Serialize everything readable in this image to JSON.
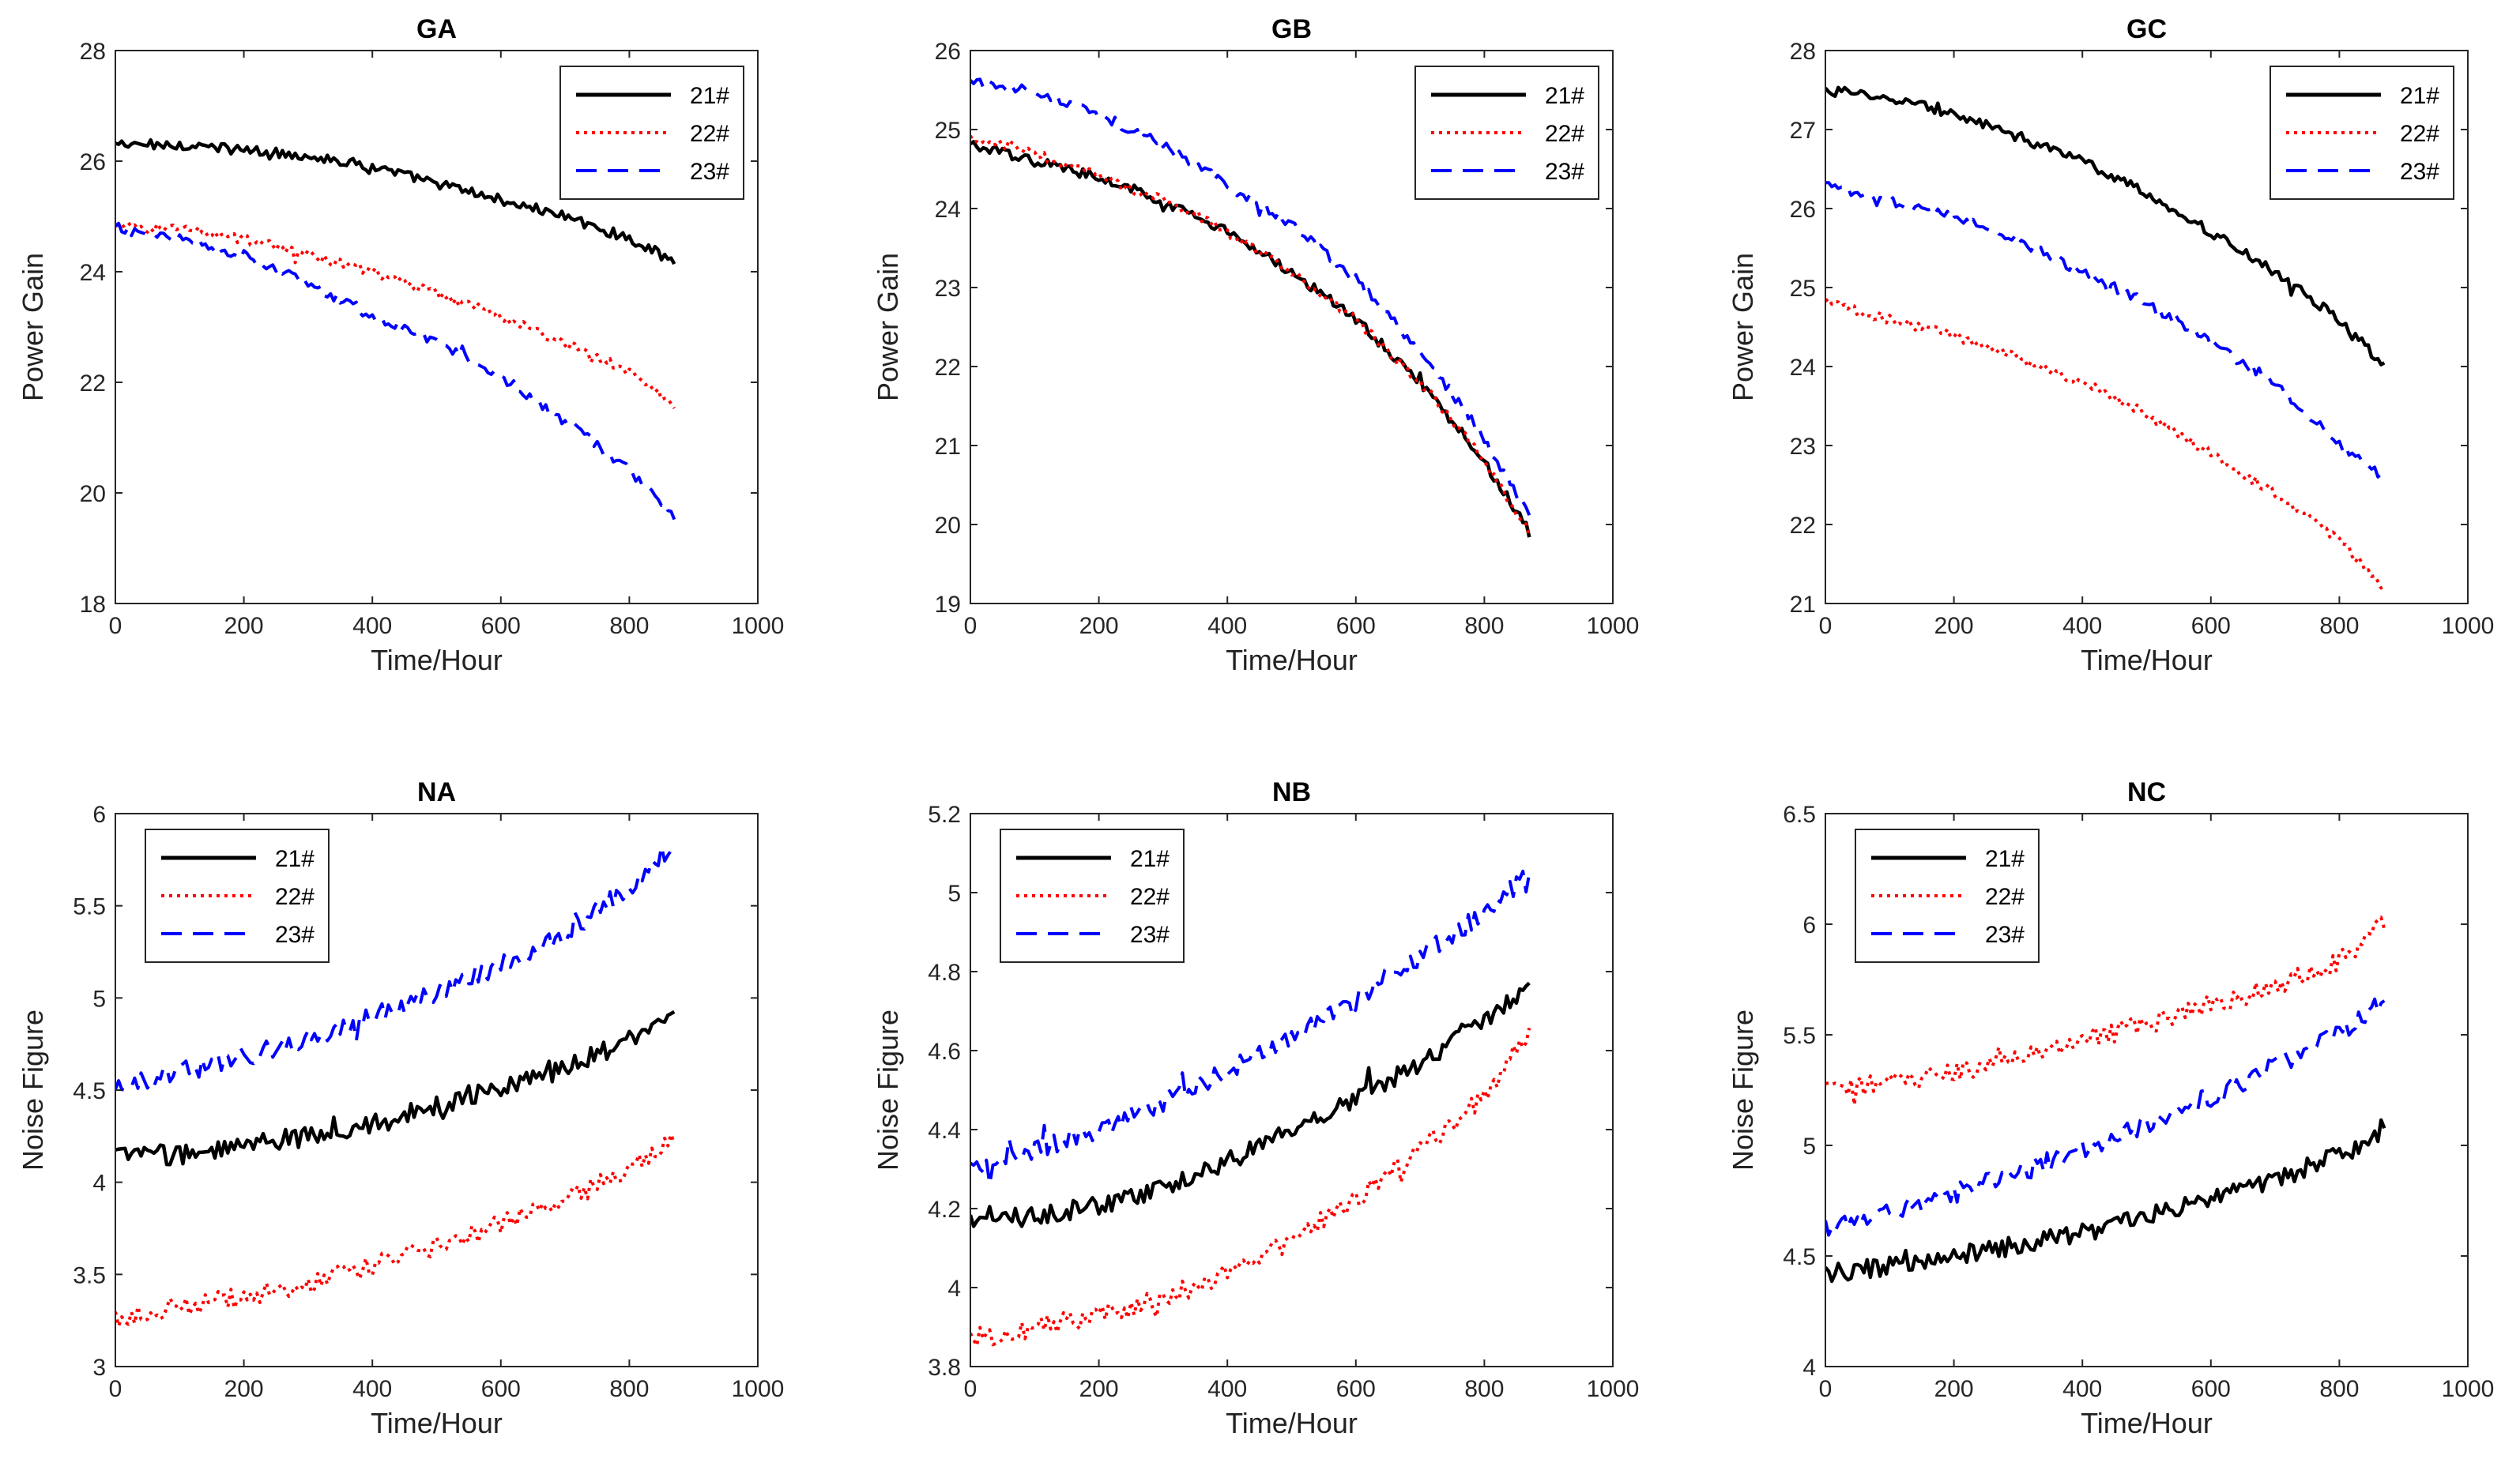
{
  "chart_data": [
    {
      "type": "line",
      "title": "GA",
      "xlabel": "Time/Hour",
      "ylabel": "Power Gain",
      "xlim": [
        0,
        1000
      ],
      "ylim": [
        18,
        28
      ],
      "xticks": [
        0,
        200,
        400,
        600,
        800,
        1000
      ],
      "yticks": [
        18,
        20,
        22,
        24,
        26,
        28
      ],
      "legend_position": "top-right",
      "x": [
        0,
        100,
        200,
        300,
        400,
        500,
        600,
        700,
        800,
        870
      ],
      "series": [
        {
          "name": "21#",
          "color": "#000000",
          "style": "solid",
          "values": [
            26.3,
            26.3,
            26.2,
            26.1,
            25.9,
            25.6,
            25.3,
            25.0,
            24.6,
            24.2
          ]
        },
        {
          "name": "22#",
          "color": "#ff0000",
          "style": "dotted",
          "values": [
            24.8,
            24.8,
            24.6,
            24.3,
            24.0,
            23.6,
            23.2,
            22.7,
            22.2,
            21.6
          ]
        },
        {
          "name": "23#",
          "color": "#0000ff",
          "style": "dashed",
          "values": [
            24.8,
            24.6,
            24.3,
            23.8,
            23.2,
            22.7,
            22.1,
            21.3,
            20.4,
            19.6
          ]
        }
      ]
    },
    {
      "type": "line",
      "title": "GB",
      "xlabel": "Time/Hour",
      "ylabel": "Power Gain",
      "xlim": [
        0,
        1000
      ],
      "ylim": [
        19,
        26
      ],
      "xticks": [
        0,
        200,
        400,
        600,
        800,
        1000
      ],
      "yticks": [
        19,
        20,
        21,
        22,
        23,
        24,
        25,
        26
      ],
      "legend_position": "top-right",
      "x": [
        0,
        100,
        200,
        300,
        400,
        500,
        600,
        700,
        800,
        870
      ],
      "series": [
        {
          "name": "21#",
          "color": "#000000",
          "style": "solid",
          "values": [
            24.8,
            24.6,
            24.4,
            24.1,
            23.7,
            23.2,
            22.6,
            21.8,
            20.8,
            19.9
          ]
        },
        {
          "name": "22#",
          "color": "#ff0000",
          "style": "dotted",
          "values": [
            24.9,
            24.7,
            24.4,
            24.1,
            23.7,
            23.2,
            22.6,
            21.8,
            20.8,
            19.9
          ]
        },
        {
          "name": "23#",
          "color": "#0000ff",
          "style": "dashed",
          "values": [
            25.6,
            25.5,
            25.2,
            24.8,
            24.3,
            23.8,
            23.1,
            22.2,
            21.1,
            20.1
          ]
        }
      ]
    },
    {
      "type": "line",
      "title": "GC",
      "xlabel": "Time/Hour",
      "ylabel": "Power Gain",
      "xlim": [
        0,
        1000
      ],
      "ylim": [
        21,
        28
      ],
      "xticks": [
        0,
        200,
        400,
        600,
        800,
        1000
      ],
      "yticks": [
        21,
        22,
        23,
        24,
        25,
        26,
        27,
        28
      ],
      "legend_position": "top-right",
      "x": [
        0,
        100,
        200,
        300,
        400,
        500,
        600,
        700,
        800,
        870
      ],
      "series": [
        {
          "name": "21#",
          "color": "#000000",
          "style": "solid",
          "values": [
            27.5,
            27.4,
            27.2,
            26.9,
            26.6,
            26.2,
            25.7,
            25.2,
            24.6,
            24.0
          ]
        },
        {
          "name": "22#",
          "color": "#ff0000",
          "style": "dotted",
          "values": [
            24.8,
            24.6,
            24.4,
            24.1,
            23.8,
            23.4,
            22.9,
            22.4,
            21.8,
            21.2
          ]
        },
        {
          "name": "23#",
          "color": "#0000ff",
          "style": "dashed",
          "values": [
            26.3,
            26.1,
            25.9,
            25.6,
            25.2,
            24.8,
            24.3,
            23.8,
            23.0,
            22.6
          ]
        }
      ]
    },
    {
      "type": "line",
      "title": "NA",
      "xlabel": "Time/Hour",
      "ylabel": "Noise Figure",
      "xlim": [
        0,
        1000
      ],
      "ylim": [
        3,
        6
      ],
      "xticks": [
        0,
        200,
        400,
        600,
        800,
        1000
      ],
      "yticks": [
        3,
        3.5,
        4,
        4.5,
        5,
        5.5,
        6
      ],
      "legend_position": "top-left",
      "x": [
        0,
        100,
        200,
        300,
        400,
        500,
        600,
        700,
        800,
        870
      ],
      "series": [
        {
          "name": "21#",
          "color": "#000000",
          "style": "solid",
          "values": [
            4.15,
            4.15,
            4.2,
            4.25,
            4.32,
            4.42,
            4.52,
            4.63,
            4.77,
            4.9
          ]
        },
        {
          "name": "22#",
          "color": "#ff0000",
          "style": "dotted",
          "values": [
            3.27,
            3.32,
            3.38,
            3.45,
            3.55,
            3.65,
            3.77,
            3.9,
            4.07,
            4.22
          ]
        },
        {
          "name": "23#",
          "color": "#0000ff",
          "style": "dashed",
          "values": [
            4.52,
            4.6,
            4.68,
            4.78,
            4.9,
            5.02,
            5.18,
            5.35,
            5.6,
            5.85
          ]
        }
      ]
    },
    {
      "type": "line",
      "title": "NB",
      "xlabel": "Time/Hour",
      "ylabel": "Noise Figure",
      "xlim": [
        0,
        1000
      ],
      "ylim": [
        3.8,
        5.2
      ],
      "xticks": [
        0,
        200,
        400,
        600,
        800,
        1000
      ],
      "yticks": [
        3.8,
        4,
        4.2,
        4.4,
        4.6,
        4.8,
        5,
        5.2
      ],
      "legend_position": "top-left",
      "x": [
        0,
        100,
        200,
        300,
        400,
        500,
        600,
        700,
        800,
        870
      ],
      "series": [
        {
          "name": "21#",
          "color": "#000000",
          "style": "solid",
          "values": [
            4.17,
            4.18,
            4.21,
            4.25,
            4.32,
            4.4,
            4.48,
            4.57,
            4.68,
            4.77
          ]
        },
        {
          "name": "22#",
          "color": "#ff0000",
          "style": "dotted",
          "values": [
            3.87,
            3.9,
            3.93,
            3.97,
            4.04,
            4.12,
            4.22,
            4.35,
            4.48,
            4.65
          ]
        },
        {
          "name": "23#",
          "color": "#0000ff",
          "style": "dashed",
          "values": [
            4.3,
            4.35,
            4.4,
            4.47,
            4.55,
            4.63,
            4.73,
            4.84,
            4.95,
            5.05
          ]
        }
      ]
    },
    {
      "type": "line",
      "title": "NC",
      "xlabel": "Time/Hour",
      "ylabel": "Noise Figure",
      "xlim": [
        0,
        1000
      ],
      "ylim": [
        4,
        6.5
      ],
      "xticks": [
        0,
        200,
        400,
        600,
        800,
        1000
      ],
      "yticks": [
        4,
        4.5,
        5,
        5.5,
        6,
        6.5
      ],
      "legend_position": "top-left",
      "x": [
        0,
        100,
        200,
        300,
        400,
        500,
        600,
        700,
        800,
        870
      ],
      "series": [
        {
          "name": "21#",
          "color": "#000000",
          "style": "solid",
          "values": [
            4.42,
            4.45,
            4.5,
            4.55,
            4.6,
            4.68,
            4.76,
            4.85,
            4.95,
            5.08
          ]
        },
        {
          "name": "22#",
          "color": "#ff0000",
          "style": "dotted",
          "values": [
            5.25,
            5.28,
            5.33,
            5.4,
            5.47,
            5.55,
            5.63,
            5.72,
            5.83,
            6.0
          ]
        },
        {
          "name": "23#",
          "color": "#0000ff",
          "style": "dashed",
          "values": [
            4.63,
            4.7,
            4.78,
            4.88,
            4.98,
            5.1,
            5.22,
            5.36,
            5.5,
            5.65
          ]
        }
      ]
    }
  ]
}
